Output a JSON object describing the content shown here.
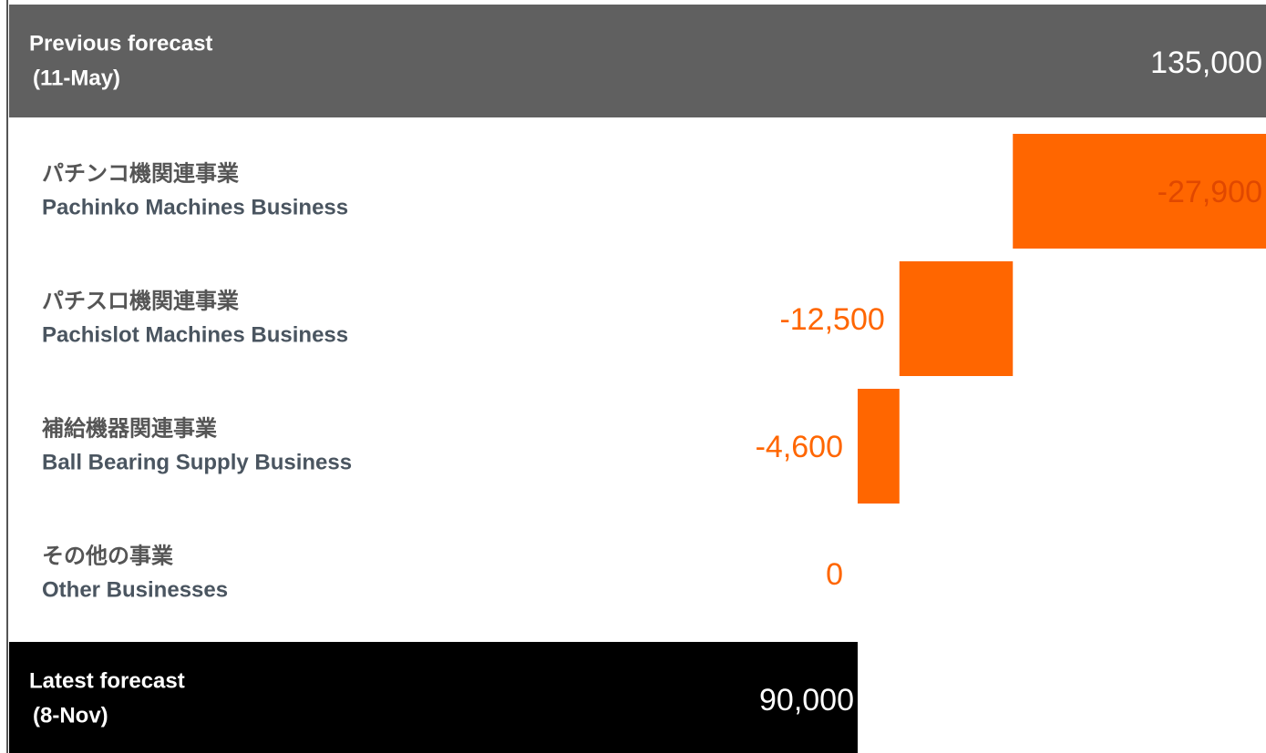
{
  "chart_data": {
    "type": "waterfall",
    "categories": [
      [
        "Previous forecast",
        "(11-May)"
      ],
      [
        "パチンコ機関連事業",
        "Pachinko Machines Business"
      ],
      [
        "パチスロ機関連事業",
        "Pachislot Machines Business"
      ],
      [
        "補給機器関連事業",
        "Ball Bearing Supply Business"
      ],
      [
        "その他の事業",
        "Other Businesses"
      ],
      [
        "Latest forecast",
        "(8-Nov)"
      ]
    ],
    "kinds": [
      "total",
      "delta",
      "delta",
      "delta",
      "delta",
      "total"
    ],
    "values": [
      135000,
      -27900,
      -12500,
      -4600,
      0,
      90000
    ],
    "value_labels": [
      "135,000",
      "-27,900",
      "-12,500",
      "-4,600",
      "0",
      "90,000"
    ],
    "colors": [
      "#606060",
      "#ff6600",
      "#ff6600",
      "#ff6600",
      "#ff6600",
      "#000000"
    ]
  }
}
